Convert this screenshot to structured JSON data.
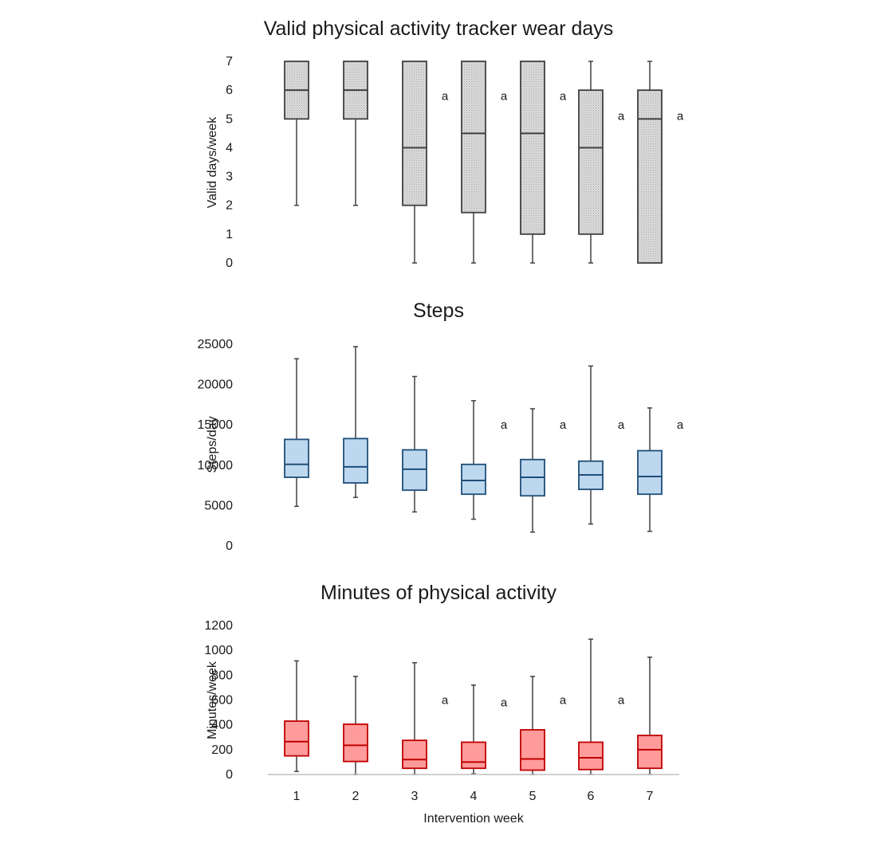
{
  "x_axis": {
    "label": "Intervention week",
    "categories": [
      "1",
      "2",
      "3",
      "4",
      "5",
      "6",
      "7"
    ]
  },
  "chart_data": [
    {
      "type": "boxplot",
      "title": "Valid physical activity tracker wear days",
      "ylabel": "Valid days/week",
      "ylim": [
        0,
        7
      ],
      "yticks": [
        "0",
        "1",
        "2",
        "3",
        "4",
        "5",
        "6",
        "7"
      ],
      "categories": [
        "1",
        "2",
        "3",
        "4",
        "5",
        "6",
        "7"
      ],
      "box_fill": "#d9d9d9",
      "box_stroke": "#404040",
      "pattern": "dotted",
      "boxes": [
        {
          "min": 2,
          "q1": 5,
          "median": 6,
          "q3": 7,
          "max": 7,
          "annotation": ""
        },
        {
          "min": 2,
          "q1": 5,
          "median": 6,
          "q3": 7,
          "max": 7,
          "annotation": ""
        },
        {
          "min": 0,
          "q1": 2,
          "median": 4,
          "q3": 7,
          "max": 7,
          "annotation": "a"
        },
        {
          "min": 0,
          "q1": 1.75,
          "median": 4.5,
          "q3": 7,
          "max": 7,
          "annotation": "a"
        },
        {
          "min": 0,
          "q1": 1,
          "median": 4.5,
          "q3": 7,
          "max": 7,
          "annotation": "a"
        },
        {
          "min": 0,
          "q1": 1,
          "median": 4,
          "q3": 6,
          "max": 7,
          "annotation": "a"
        },
        {
          "min": 0,
          "q1": 0,
          "median": 5,
          "q3": 6,
          "max": 7,
          "annotation": "a"
        }
      ],
      "annotation_values": [
        null,
        null,
        5.8,
        5.8,
        5.8,
        5.1,
        5.1
      ]
    },
    {
      "type": "boxplot",
      "title": "Steps",
      "ylabel": "Steps/day",
      "ylim": [
        0,
        25000
      ],
      "yticks": [
        "0",
        "5000",
        "10000",
        "15000",
        "20000",
        "25000"
      ],
      "categories": [
        "1",
        "2",
        "3",
        "4",
        "5",
        "6",
        "7"
      ],
      "box_fill": "#bdd7ee",
      "box_stroke": "#1f4e79",
      "pattern": "",
      "boxes": [
        {
          "min": 4900,
          "q1": 8500,
          "median": 10100,
          "q3": 13200,
          "max": 23200,
          "annotation": ""
        },
        {
          "min": 6000,
          "q1": 7800,
          "median": 9800,
          "q3": 13300,
          "max": 24700,
          "annotation": ""
        },
        {
          "min": 4200,
          "q1": 6900,
          "median": 9500,
          "q3": 11900,
          "max": 21000,
          "annotation": ""
        },
        {
          "min": 3300,
          "q1": 6400,
          "median": 8100,
          "q3": 10100,
          "max": 18000,
          "annotation": "a"
        },
        {
          "min": 1700,
          "q1": 6200,
          "median": 8500,
          "q3": 10700,
          "max": 17000,
          "annotation": "a"
        },
        {
          "min": 2700,
          "q1": 7000,
          "median": 8800,
          "q3": 10500,
          "max": 22300,
          "annotation": "a"
        },
        {
          "min": 1800,
          "q1": 6400,
          "median": 8600,
          "q3": 11800,
          "max": 17100,
          "annotation": "a"
        }
      ],
      "annotation_values": [
        null,
        null,
        null,
        15000,
        15000,
        15000,
        15000
      ]
    },
    {
      "type": "boxplot",
      "title": "Minutes of physical activity",
      "ylabel": "Minutes/week",
      "ylim": [
        0,
        1200
      ],
      "yticks": [
        "0",
        "200",
        "400",
        "600",
        "800",
        "1000",
        "1200"
      ],
      "categories": [
        "1",
        "2",
        "3",
        "4",
        "5",
        "6",
        "7"
      ],
      "box_fill": "#ff9b9b",
      "box_stroke": "#c00000",
      "pattern": "",
      "boxes": [
        {
          "min": 25,
          "q1": 150,
          "median": 265,
          "q3": 430,
          "max": 915,
          "annotation": ""
        },
        {
          "min": 0,
          "q1": 105,
          "median": 235,
          "q3": 405,
          "max": 790,
          "annotation": ""
        },
        {
          "min": 0,
          "q1": 50,
          "median": 120,
          "q3": 275,
          "max": 900,
          "annotation": "a"
        },
        {
          "min": 5,
          "q1": 50,
          "median": 100,
          "q3": 260,
          "max": 720,
          "annotation": "a"
        },
        {
          "min": 0,
          "q1": 35,
          "median": 125,
          "q3": 360,
          "max": 790,
          "annotation": "a"
        },
        {
          "min": 0,
          "q1": 40,
          "median": 135,
          "q3": 260,
          "max": 1090,
          "annotation": "a"
        },
        {
          "min": 0,
          "q1": 50,
          "median": 200,
          "q3": 315,
          "max": 945,
          "annotation": ""
        }
      ],
      "annotation_values": [
        null,
        null,
        600,
        580,
        600,
        600,
        null
      ]
    }
  ]
}
